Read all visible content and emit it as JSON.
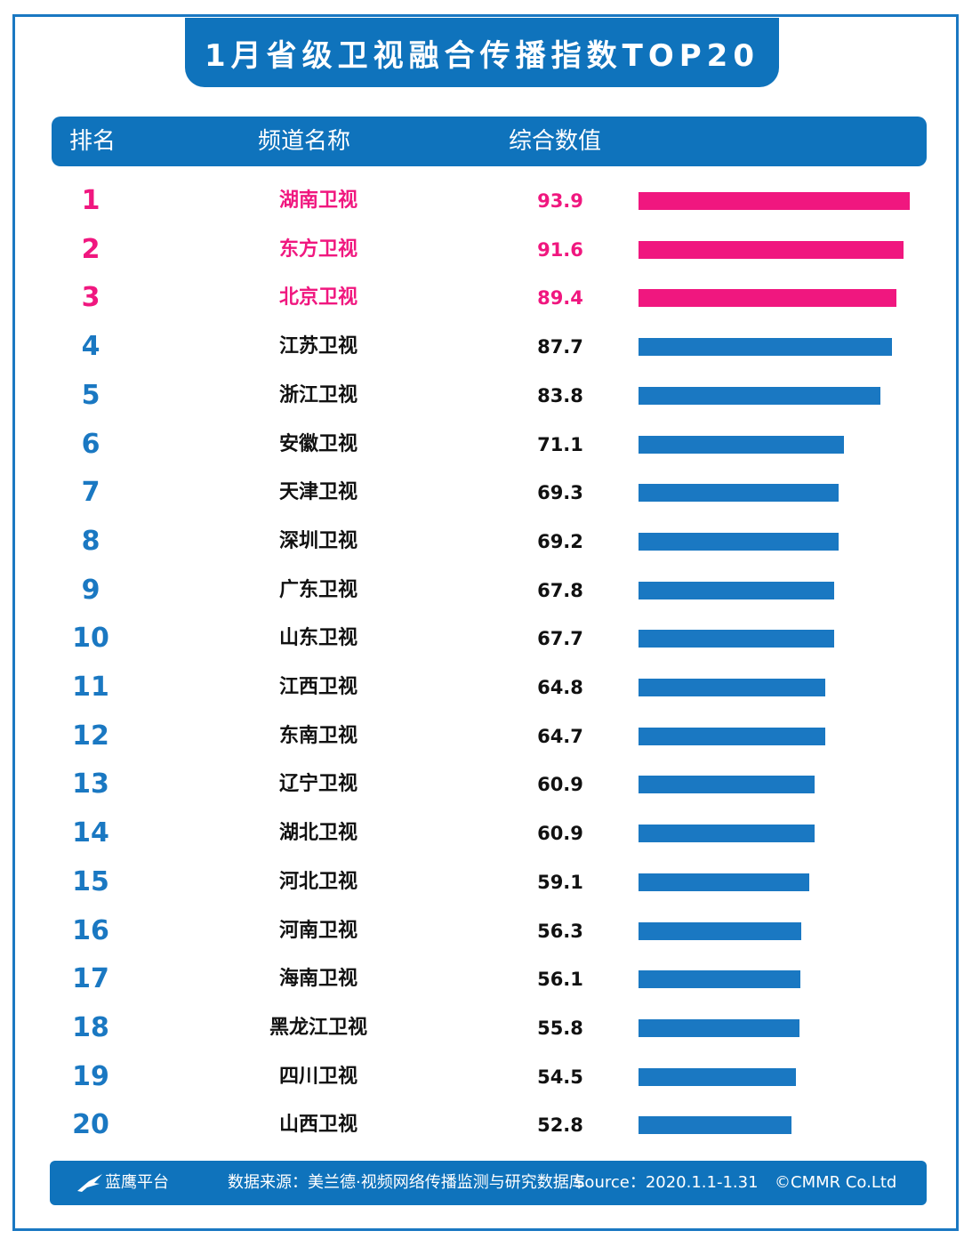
{
  "title": "1月省级卫视融合传播指数TOP20",
  "header": {
    "rank": "排名",
    "name": "频道名称",
    "value": "综合数值"
  },
  "colors": {
    "top3": "#f0177f",
    "others": "#1a78c2",
    "header": "#0f73bc"
  },
  "chart_data": {
    "type": "bar",
    "orientation": "horizontal",
    "title": "1月省级卫视融合传播指数TOP20",
    "categories": [
      "湖南卫视",
      "东方卫视",
      "北京卫视",
      "江苏卫视",
      "浙江卫视",
      "安徽卫视",
      "天津卫视",
      "深圳卫视",
      "广东卫视",
      "山东卫视",
      "江西卫视",
      "东南卫视",
      "辽宁卫视",
      "湖北卫视",
      "河北卫视",
      "河南卫视",
      "海南卫视",
      "黑龙江卫视",
      "四川卫视",
      "山西卫视"
    ],
    "ranks": [
      "1",
      "2",
      "3",
      "4",
      "5",
      "6",
      "7",
      "8",
      "9",
      "10",
      "11",
      "12",
      "13",
      "14",
      "15",
      "16",
      "17",
      "18",
      "19",
      "20"
    ],
    "values": [
      93.9,
      91.6,
      89.4,
      87.7,
      83.8,
      71.1,
      69.3,
      69.2,
      67.8,
      67.7,
      64.8,
      64.7,
      60.9,
      60.9,
      59.1,
      56.3,
      56.1,
      55.8,
      54.5,
      52.8
    ],
    "value_labels": [
      "93.9",
      "91.6",
      "89.4",
      "87.7",
      "83.8",
      "71.1",
      "69.3",
      "69.2",
      "67.8",
      "67.7",
      "64.8",
      "64.7",
      "60.9",
      "60.9",
      "59.1",
      "56.3",
      "56.1",
      "55.8",
      "54.5",
      "52.8"
    ],
    "highlight_top": 3,
    "xlim": [
      0,
      93.9
    ]
  },
  "footer": {
    "platform": "蓝鹰平台",
    "source_cn": "数据来源：美兰德·视频网络传播监测与研究数据库",
    "source_en": "Source：2020.1.1-1.31",
    "copyright": "©CMMR Co.Ltd"
  }
}
